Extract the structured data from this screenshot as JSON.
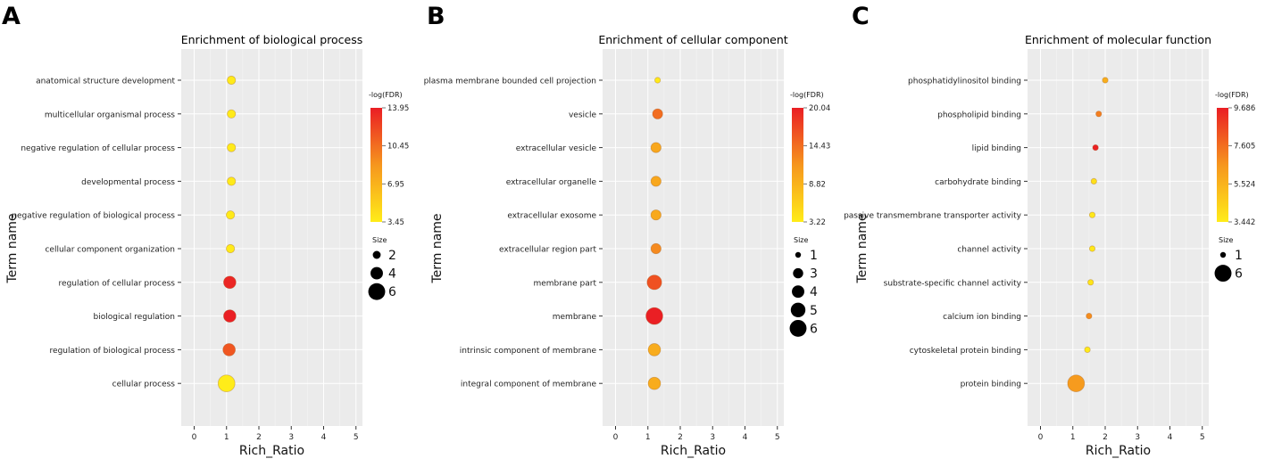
{
  "chart_data": [
    {
      "type": "scatter",
      "panel_label": "A",
      "title": "Enrichment of biological process",
      "xlabel": "Rich_Ratio",
      "ylabel": "Term name",
      "xlim": [
        -0.4,
        5.2
      ],
      "x_ticks": [
        0,
        1,
        2,
        3,
        4,
        5
      ],
      "x_tick_labels": [
        "0",
        "1",
        "2",
        "3",
        "4",
        "5"
      ],
      "terms": [
        "anatomical structure development",
        "multicellular organismal process",
        "negative regulation of cellular process",
        "developmental process",
        "negative regulation of biological process",
        "cellular component organization",
        "regulation of cellular process",
        "biological regulation",
        "regulation of biological process",
        "cellular process"
      ],
      "rich_ratio": [
        1.15,
        1.15,
        1.15,
        1.15,
        1.12,
        1.12,
        1.1,
        1.1,
        1.08,
        1.0
      ],
      "neg_log_fdr": [
        3.6,
        3.6,
        3.6,
        3.6,
        3.6,
        3.6,
        13.6,
        13.9,
        11.5,
        3.45
      ],
      "size": [
        2.2,
        2.2,
        2.2,
        2.2,
        2.2,
        2.2,
        4,
        4,
        4,
        6
      ],
      "color_legend": {
        "title": "-log(FDR)",
        "max": 13.95,
        "min": 3.45,
        "tick_labels": [
          "13.95",
          "10.45",
          "6.95",
          "3.45"
        ]
      },
      "size_legend": {
        "title": "Size",
        "values": [
          2,
          4,
          6
        ],
        "labels": [
          "2",
          "4",
          "6"
        ]
      }
    },
    {
      "type": "scatter",
      "panel_label": "B",
      "title": "Enrichment of cellular component",
      "xlabel": "Rich_Ratio",
      "ylabel": "Term name",
      "xlim": [
        -0.4,
        5.2
      ],
      "x_ticks": [
        0,
        1,
        2,
        3,
        4,
        5
      ],
      "x_tick_labels": [
        "0",
        "1",
        "2",
        "3",
        "4",
        "5"
      ],
      "terms": [
        "plasma membrane bounded cell projection",
        "vesicle",
        "extracellular vesicle",
        "extracellular organelle",
        "extracellular exosome",
        "extracellular region part",
        "membrane part",
        "membrane",
        "intrinsic component of membrane",
        "integral component of membrane"
      ],
      "rich_ratio": [
        1.3,
        1.3,
        1.25,
        1.25,
        1.25,
        1.25,
        1.2,
        1.2,
        1.2,
        1.2
      ],
      "neg_log_fdr": [
        3.4,
        14.5,
        10.0,
        10.0,
        9.8,
        12.5,
        16.5,
        20.0,
        9.5,
        9.5
      ],
      "size": [
        1,
        3,
        3,
        3,
        3,
        3,
        5,
        6,
        4,
        4
      ],
      "color_legend": {
        "title": "-log(FDR)",
        "max": 20.04,
        "min": 3.22,
        "tick_labels": [
          "20.04",
          "14.43",
          "8.82",
          "3.22"
        ]
      },
      "size_legend": {
        "title": "Size",
        "values": [
          1,
          3,
          4,
          5,
          6
        ],
        "labels": [
          "1",
          "3",
          "4",
          "5",
          "6"
        ]
      }
    },
    {
      "type": "scatter",
      "panel_label": "C",
      "title": "Enrichment of molecular function",
      "xlabel": "Rich_Ratio",
      "ylabel": "Term name",
      "xlim": [
        -0.4,
        5.2
      ],
      "x_ticks": [
        0,
        1,
        2,
        3,
        4,
        5
      ],
      "x_tick_labels": [
        "0",
        "1",
        "2",
        "3",
        "4",
        "5"
      ],
      "terms": [
        "phosphatidylinositol binding",
        "phospholipid binding",
        "lipid binding",
        "carbohydrate binding",
        "passive transmembrane transporter activity",
        "channel activity",
        "substrate-specific channel activity",
        "calcium ion binding",
        "cytoskeletal protein binding",
        "protein binding"
      ],
      "rich_ratio": [
        2.0,
        1.8,
        1.7,
        1.65,
        1.6,
        1.6,
        1.55,
        1.5,
        1.45,
        1.1
      ],
      "neg_log_fdr": [
        5.7,
        7.2,
        9.6,
        3.9,
        3.6,
        3.6,
        3.7,
        6.8,
        3.5,
        6.4
      ],
      "size": [
        1,
        1,
        1,
        1,
        1,
        1,
        1,
        1,
        1,
        6
      ],
      "color_legend": {
        "title": "-log(FDR)",
        "max": 9.686,
        "min": 3.442,
        "tick_labels": [
          "9.686",
          "7.605",
          "5.524",
          "3.442"
        ]
      },
      "size_legend": {
        "title": "Size",
        "values": [
          1,
          6
        ],
        "labels": [
          "1",
          "6"
        ]
      }
    }
  ]
}
